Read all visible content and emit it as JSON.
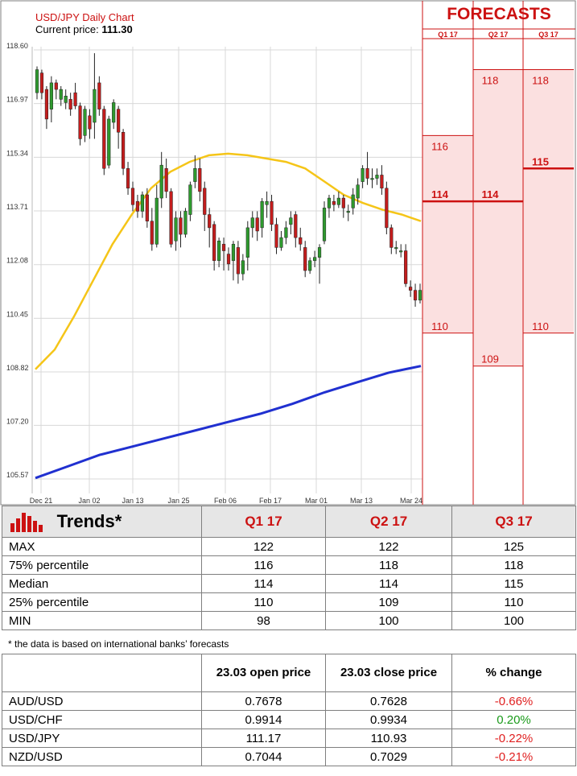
{
  "header": {
    "chart_title": "USD/JPY Daily Chart",
    "current_price_label": "Current price:",
    "current_price_value": "111.30",
    "forecasts_title": "FORECASTS"
  },
  "chart_data": {
    "type": "candlestick",
    "y_ticks": [
      "118.60",
      "116.97",
      "115.34",
      "113.71",
      "112.08",
      "110.45",
      "108.82",
      "107.20",
      "105.57"
    ],
    "ylim": [
      105.57,
      118.6
    ],
    "x_ticks": [
      "Dec 21",
      "Jan 02",
      "Jan 13",
      "Jan 25",
      "Feb 06",
      "Feb 17",
      "Mar 01",
      "Mar 13",
      "Mar 24"
    ],
    "candles": [
      {
        "o": 117.3,
        "c": 118.0,
        "h": 118.1,
        "l": 117.1
      },
      {
        "o": 117.9,
        "c": 117.3,
        "h": 118.0,
        "l": 117.1
      },
      {
        "o": 117.4,
        "c": 116.5,
        "h": 117.5,
        "l": 116.2
      },
      {
        "o": 116.8,
        "c": 117.6,
        "h": 117.8,
        "l": 116.4
      },
      {
        "o": 117.6,
        "c": 117.4,
        "h": 117.7,
        "l": 117.1
      },
      {
        "o": 117.1,
        "c": 117.4,
        "h": 117.5,
        "l": 116.9
      },
      {
        "o": 117.0,
        "c": 117.2,
        "h": 117.4,
        "l": 116.8
      },
      {
        "o": 117.1,
        "c": 116.8,
        "h": 117.3,
        "l": 116.6
      },
      {
        "o": 117.3,
        "c": 116.9,
        "h": 117.6,
        "l": 116.8
      },
      {
        "o": 116.9,
        "c": 115.9,
        "h": 117.0,
        "l": 115.7
      },
      {
        "o": 116.0,
        "c": 116.8,
        "h": 116.9,
        "l": 115.8
      },
      {
        "o": 116.6,
        "c": 116.2,
        "h": 116.8,
        "l": 115.9
      },
      {
        "o": 116.4,
        "c": 117.4,
        "h": 118.5,
        "l": 115.9
      },
      {
        "o": 117.6,
        "c": 116.8,
        "h": 117.8,
        "l": 116.6
      },
      {
        "o": 116.8,
        "c": 115.0,
        "h": 116.9,
        "l": 114.8
      },
      {
        "o": 115.1,
        "c": 116.5,
        "h": 116.6,
        "l": 115.0
      },
      {
        "o": 116.4,
        "c": 117.0,
        "h": 117.1,
        "l": 116.2
      },
      {
        "o": 116.8,
        "c": 116.1,
        "h": 116.9,
        "l": 115.6
      },
      {
        "o": 116.1,
        "c": 115.0,
        "h": 116.2,
        "l": 114.8
      },
      {
        "o": 115.0,
        "c": 114.4,
        "h": 115.2,
        "l": 114.2
      },
      {
        "o": 114.4,
        "c": 113.9,
        "h": 114.6,
        "l": 113.7
      },
      {
        "o": 114.0,
        "c": 113.7,
        "h": 114.2,
        "l": 113.5
      },
      {
        "o": 113.7,
        "c": 114.2,
        "h": 114.3,
        "l": 113.5
      },
      {
        "o": 114.2,
        "c": 113.4,
        "h": 114.4,
        "l": 113.2
      },
      {
        "o": 113.4,
        "c": 112.7,
        "h": 113.8,
        "l": 112.5
      },
      {
        "o": 112.7,
        "c": 114.1,
        "h": 114.5,
        "l": 112.6
      },
      {
        "o": 114.1,
        "c": 115.1,
        "h": 115.5,
        "l": 113.8
      },
      {
        "o": 115.0,
        "c": 114.3,
        "h": 115.3,
        "l": 114.1
      },
      {
        "o": 114.3,
        "c": 112.7,
        "h": 114.4,
        "l": 112.6
      },
      {
        "o": 112.8,
        "c": 113.5,
        "h": 113.7,
        "l": 112.5
      },
      {
        "o": 113.5,
        "c": 113.0,
        "h": 113.7,
        "l": 112.6
      },
      {
        "o": 113.0,
        "c": 113.7,
        "h": 113.8,
        "l": 112.9
      },
      {
        "o": 113.6,
        "c": 114.5,
        "h": 114.6,
        "l": 113.4
      },
      {
        "o": 114.6,
        "c": 115.0,
        "h": 115.4,
        "l": 114.4
      },
      {
        "o": 115.0,
        "c": 114.3,
        "h": 115.3,
        "l": 114.0
      },
      {
        "o": 114.4,
        "c": 113.6,
        "h": 114.6,
        "l": 113.1
      },
      {
        "o": 113.6,
        "c": 113.2,
        "h": 113.8,
        "l": 112.6
      },
      {
        "o": 113.3,
        "c": 112.2,
        "h": 113.4,
        "l": 111.9
      },
      {
        "o": 112.2,
        "c": 112.8,
        "h": 112.9,
        "l": 112.0
      },
      {
        "o": 112.7,
        "c": 112.5,
        "h": 112.9,
        "l": 111.9
      },
      {
        "o": 112.4,
        "c": 112.1,
        "h": 112.6,
        "l": 111.9
      },
      {
        "o": 112.2,
        "c": 112.7,
        "h": 112.8,
        "l": 111.6
      },
      {
        "o": 112.6,
        "c": 111.8,
        "h": 112.8,
        "l": 111.5
      },
      {
        "o": 111.8,
        "c": 112.2,
        "h": 112.4,
        "l": 111.6
      },
      {
        "o": 112.3,
        "c": 113.2,
        "h": 113.4,
        "l": 111.9
      },
      {
        "o": 113.2,
        "c": 113.5,
        "h": 113.7,
        "l": 112.9
      },
      {
        "o": 113.5,
        "c": 113.1,
        "h": 113.7,
        "l": 112.8
      },
      {
        "o": 113.2,
        "c": 114.0,
        "h": 114.1,
        "l": 112.9
      },
      {
        "o": 113.9,
        "c": 114.0,
        "h": 114.3,
        "l": 113.5
      },
      {
        "o": 114.0,
        "c": 113.3,
        "h": 114.2,
        "l": 113.1
      },
      {
        "o": 113.3,
        "c": 112.6,
        "h": 113.5,
        "l": 112.4
      },
      {
        "o": 112.6,
        "c": 112.9,
        "h": 113.1,
        "l": 112.5
      },
      {
        "o": 112.9,
        "c": 113.2,
        "h": 113.4,
        "l": 112.7
      },
      {
        "o": 113.3,
        "c": 113.5,
        "h": 113.7,
        "l": 113.0
      },
      {
        "o": 113.6,
        "c": 112.9,
        "h": 113.7,
        "l": 112.6
      },
      {
        "o": 112.9,
        "c": 112.7,
        "h": 113.2,
        "l": 112.5
      },
      {
        "o": 112.6,
        "c": 111.9,
        "h": 112.8,
        "l": 111.7
      },
      {
        "o": 111.9,
        "c": 112.2,
        "h": 112.3,
        "l": 111.8
      },
      {
        "o": 112.2,
        "c": 112.3,
        "h": 112.5,
        "l": 112.0
      },
      {
        "o": 112.3,
        "c": 112.6,
        "h": 112.7,
        "l": 111.5
      },
      {
        "o": 112.8,
        "c": 113.8,
        "h": 114.0,
        "l": 112.7
      },
      {
        "o": 113.8,
        "c": 114.1,
        "h": 114.2,
        "l": 113.5
      },
      {
        "o": 114.0,
        "c": 113.9,
        "h": 114.2,
        "l": 113.7
      },
      {
        "o": 113.9,
        "c": 114.1,
        "h": 114.3,
        "l": 113.8
      },
      {
        "o": 114.1,
        "c": 113.8,
        "h": 114.2,
        "l": 113.5
      },
      {
        "o": 113.7,
        "c": 113.7,
        "h": 113.9,
        "l": 113.4
      },
      {
        "o": 113.8,
        "c": 114.2,
        "h": 114.4,
        "l": 113.6
      },
      {
        "o": 114.1,
        "c": 114.5,
        "h": 114.7,
        "l": 113.9
      },
      {
        "o": 114.6,
        "c": 115.0,
        "h": 115.1,
        "l": 114.4
      },
      {
        "o": 115.0,
        "c": 114.7,
        "h": 115.5,
        "l": 114.5
      },
      {
        "o": 114.7,
        "c": 114.7,
        "h": 115.0,
        "l": 114.4
      },
      {
        "o": 114.7,
        "c": 114.8,
        "h": 115.0,
        "l": 114.5
      },
      {
        "o": 114.8,
        "c": 114.4,
        "h": 115.1,
        "l": 114.2
      },
      {
        "o": 114.4,
        "c": 113.2,
        "h": 114.6,
        "l": 113.0
      },
      {
        "o": 113.2,
        "c": 112.6,
        "h": 113.3,
        "l": 112.4
      },
      {
        "o": 112.6,
        "c": 112.6,
        "h": 112.8,
        "l": 112.4
      },
      {
        "o": 112.5,
        "c": 112.5,
        "h": 112.7,
        "l": 112.3
      },
      {
        "o": 112.5,
        "c": 111.5,
        "h": 112.7,
        "l": 111.4
      },
      {
        "o": 111.4,
        "c": 111.3,
        "h": 111.6,
        "l": 111.1
      },
      {
        "o": 111.3,
        "c": 111.0,
        "h": 111.5,
        "l": 110.8
      },
      {
        "o": 111.0,
        "c": 111.3,
        "h": 111.5,
        "l": 110.9
      }
    ],
    "ma_short": [
      108.9,
      109.5,
      110.5,
      111.6,
      112.7,
      113.6,
      114.4,
      114.9,
      115.2,
      115.4,
      115.45,
      115.4,
      115.3,
      115.2,
      115.0,
      114.6,
      114.2,
      113.95,
      113.75,
      113.6,
      113.4
    ],
    "ma_long": [
      105.6,
      105.95,
      106.3,
      106.55,
      106.8,
      107.05,
      107.3,
      107.55,
      107.85,
      108.2,
      108.5,
      108.8,
      109.0
    ],
    "colors": {
      "up": "#2e9a2e",
      "down": "#c41d1d",
      "ma_short": "#f5c518",
      "ma_long": "#2030d0",
      "forecast": "#cc1111",
      "forecast_fill": "#fbe0e0"
    },
    "forecast_columns": [
      {
        "label": "Q1 17",
        "high": 116,
        "low": 110,
        "median": 114
      },
      {
        "label": "Q2 17",
        "high": 118,
        "low": 109,
        "median": 114
      },
      {
        "label": "Q3 17",
        "high": 118,
        "low": 110,
        "median": 115
      }
    ]
  },
  "trends": {
    "title": "Trends*",
    "icon": "bar-chart-icon",
    "columns": [
      "Q1 17",
      "Q2 17",
      "Q3 17"
    ],
    "rows": [
      {
        "label": "MAX",
        "values": [
          "122",
          "122",
          "125"
        ]
      },
      {
        "label": "75% percentile",
        "values": [
          "116",
          "118",
          "118"
        ]
      },
      {
        "label": "Median",
        "values": [
          "114",
          "114",
          "115"
        ]
      },
      {
        "label": "25% percentile",
        "values": [
          "110",
          "109",
          "110"
        ]
      },
      {
        "label": "MIN",
        "values": [
          "98",
          "100",
          "100"
        ]
      }
    ],
    "footnote": "* the data is based on international banks’ forecasts"
  },
  "fx": {
    "headers": [
      "",
      "23.03 open price",
      "23.03 close price",
      "% change"
    ],
    "rows": [
      {
        "pair": "AUD/USD",
        "open": "0.7678",
        "close": "0.7628",
        "change": "-0.66%",
        "sign": "neg"
      },
      {
        "pair": "USD/CHF",
        "open": "0.9914",
        "close": "0.9934",
        "change": "0.20%",
        "sign": "pos"
      },
      {
        "pair": "USD/JPY",
        "open": "111.17",
        "close": "110.93",
        "change": "-0.22%",
        "sign": "neg"
      },
      {
        "pair": "NZD/USD",
        "open": "0.7044",
        "close": "0.7029",
        "change": "-0.21%",
        "sign": "neg"
      }
    ]
  }
}
